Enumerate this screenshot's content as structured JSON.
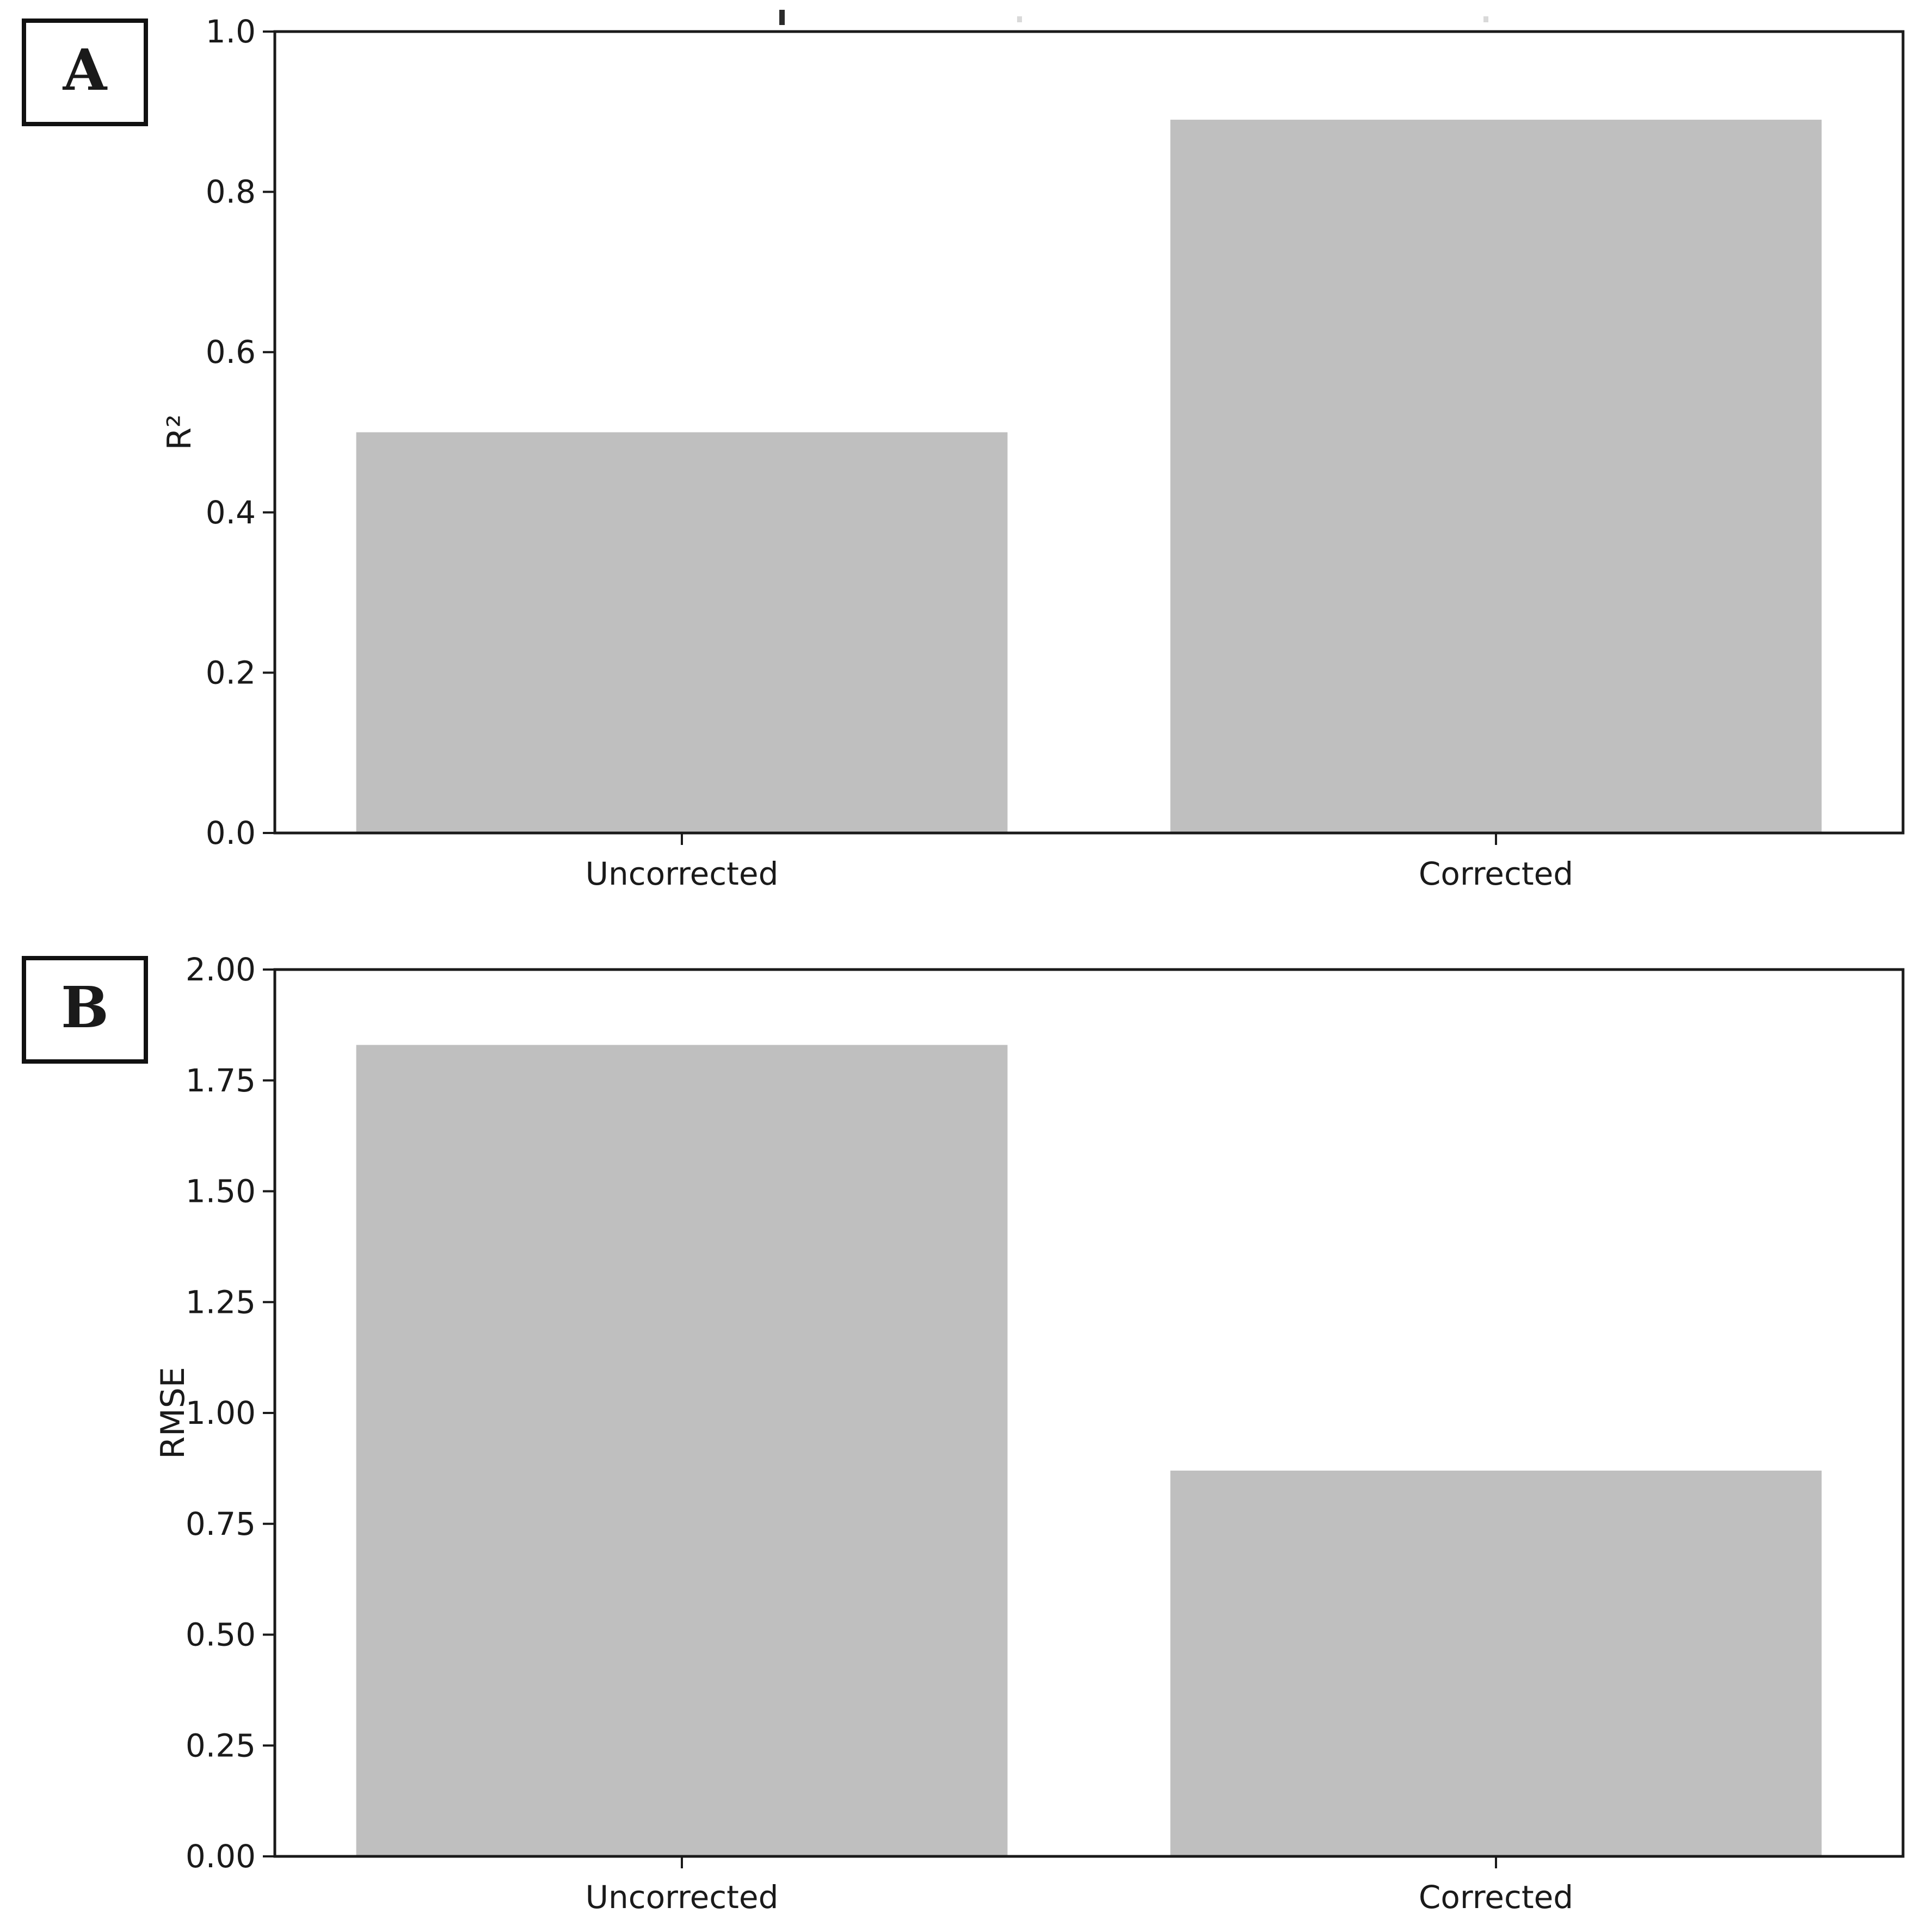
{
  "figure": {
    "background_color": "#ffffff",
    "text_color": "#1a1a1a",
    "spine_color": "#1a1a1a"
  },
  "chart_data": [
    {
      "type": "bar",
      "panel_letter": "A",
      "categories": [
        "Uncorrected",
        "Corrected"
      ],
      "values": [
        0.5,
        0.89
      ],
      "title": "",
      "xlabel": "",
      "ylabel": "R²",
      "ylim": [
        0.0,
        1.0
      ],
      "ytick_values": [
        0.0,
        0.2,
        0.4,
        0.6,
        0.8,
        1.0
      ],
      "ytick_labels": [
        "0.0",
        "0.2",
        "0.4",
        "0.6",
        "0.8",
        "1.0"
      ],
      "xlim": [
        -0.5,
        1.5
      ],
      "bar_width": 0.8,
      "bar_color": "#bfbfbf",
      "grid": false,
      "legend_position": "none"
    },
    {
      "type": "bar",
      "panel_letter": "B",
      "categories": [
        "Uncorrected",
        "Corrected"
      ],
      "values": [
        1.83,
        0.87
      ],
      "title": "",
      "xlabel": "",
      "ylabel": "RMSE",
      "ylim": [
        0.0,
        2.0
      ],
      "ytick_values": [
        0.0,
        0.25,
        0.5,
        0.75,
        1.0,
        1.25,
        1.5,
        1.75,
        2.0
      ],
      "ytick_labels": [
        "0.00",
        "0.25",
        "0.50",
        "0.75",
        "1.00",
        "1.25",
        "1.50",
        "1.75",
        "2.00"
      ],
      "xlim": [
        -0.5,
        1.5
      ],
      "bar_width": 0.8,
      "bar_color": "#bfbfbf",
      "grid": false,
      "legend_position": "none"
    }
  ]
}
